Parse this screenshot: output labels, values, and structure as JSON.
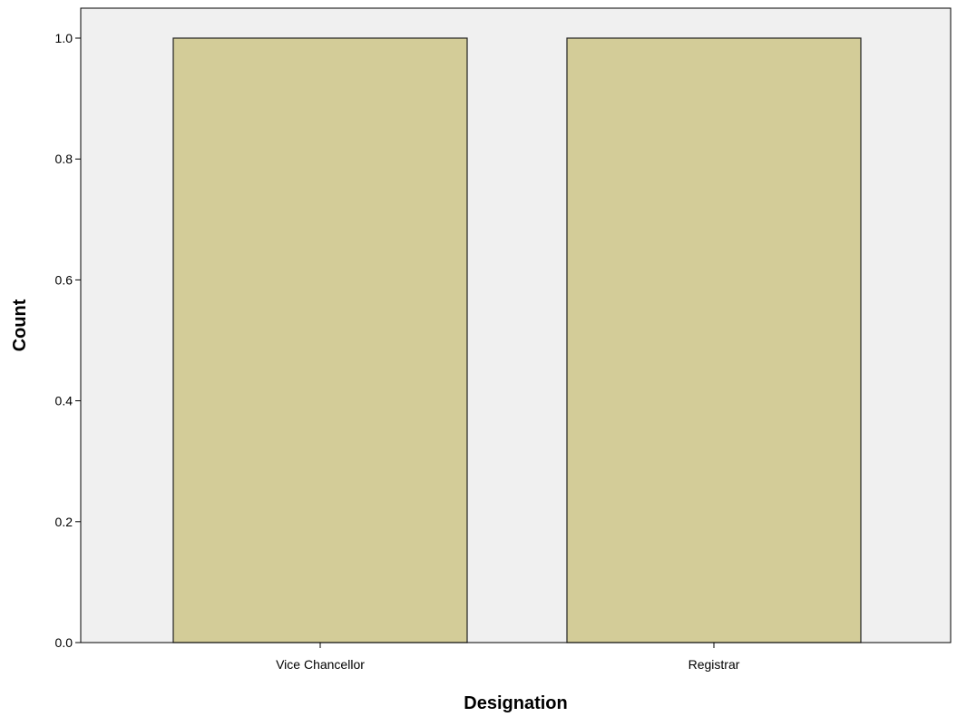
{
  "chart_data": {
    "type": "bar",
    "categories": [
      "Vice Chancellor",
      "Registrar"
    ],
    "values": [
      1.0,
      1.0
    ],
    "xlabel": "Designation",
    "ylabel": "Count",
    "ylim": [
      0.0,
      1.05
    ],
    "yticks": [
      "0.0",
      "0.2",
      "0.4",
      "0.6",
      "0.8",
      "1.0"
    ],
    "grid": false,
    "colors": {
      "bar_fill": "#d3cc98",
      "bar_stroke": "#222222",
      "plot_background": "#f0f0f0",
      "axis": "#000000"
    }
  }
}
